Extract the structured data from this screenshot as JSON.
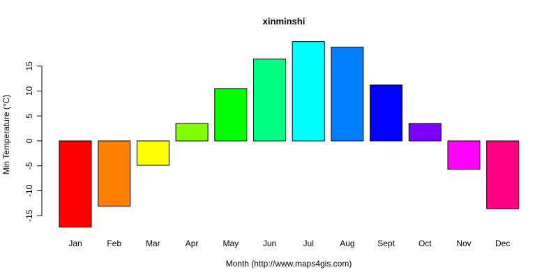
{
  "chart_data": {
    "type": "bar",
    "title": "xinminshi",
    "xlabel": "Month (http://www.maps4gis.com)",
    "ylabel": "Min Temperature (°C)",
    "categories": [
      "Jan",
      "Feb",
      "Mar",
      "Apr",
      "May",
      "Jun",
      "Jul",
      "Aug",
      "Sept",
      "Oct",
      "Nov",
      "Dec"
    ],
    "values": [
      -17.3,
      -13.1,
      -4.9,
      3.5,
      10.5,
      16.4,
      19.9,
      18.8,
      11.2,
      3.5,
      -5.7,
      -13.6
    ],
    "colors": [
      "#FF0000",
      "#FF8000",
      "#FFFF00",
      "#80FF00",
      "#00FF00",
      "#00FF80",
      "#00FFFF",
      "#0080FF",
      "#0000FF",
      "#8000FF",
      "#FF00FF",
      "#FF0080"
    ],
    "yticks": [
      -15,
      -10,
      -5,
      0,
      5,
      10,
      15
    ],
    "ylim": [
      -18,
      20
    ],
    "grid": false,
    "legend": "none"
  }
}
